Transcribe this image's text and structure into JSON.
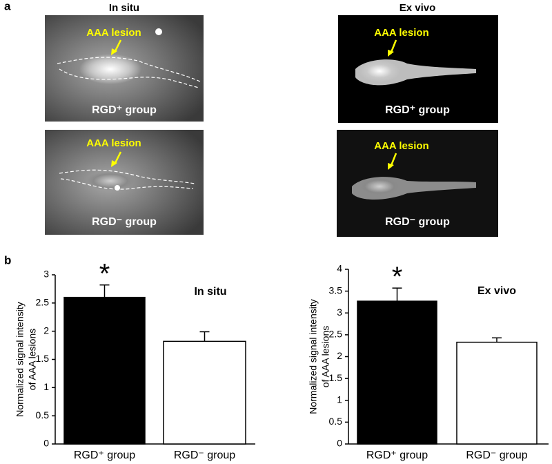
{
  "figure": {
    "panel_labels": [
      "a",
      "b"
    ],
    "images": [
      {
        "title": "In situ",
        "panels": [
          {
            "annotation": "AAA lesion",
            "group": "RGD⁺ group"
          },
          {
            "annotation": "AAA lesion",
            "group": "RGD⁻ group"
          }
        ]
      },
      {
        "title": "Ex vivo",
        "panels": [
          {
            "annotation": "AAA lesion",
            "group": "RGD⁺ group"
          },
          {
            "annotation": "AAA lesion",
            "group": "RGD⁻ group"
          }
        ]
      }
    ]
  },
  "chart_data": [
    {
      "type": "bar",
      "label": "In situ",
      "significance": "*",
      "ylabel": [
        "Normalized signal intensity",
        "of AAA lesions"
      ],
      "categories": [
        "RGD⁺ group",
        "RGD⁻ group"
      ],
      "values": [
        2.6,
        1.82
      ],
      "errors": [
        0.22,
        0.17
      ],
      "colors": [
        "#000000",
        "#ffffff"
      ],
      "ylim": [
        0,
        3
      ],
      "yticks": [
        0,
        0.5,
        1,
        1.5,
        2,
        2.5,
        3
      ]
    },
    {
      "type": "bar",
      "label": "Ex vivo",
      "significance": "*",
      "ylabel": [
        "Normalized signal intensity",
        "of AAA lesions"
      ],
      "categories": [
        "RGD⁺ group",
        "RGD⁻ group"
      ],
      "values": [
        3.27,
        2.33
      ],
      "errors": [
        0.3,
        0.1
      ],
      "colors": [
        "#000000",
        "#ffffff"
      ],
      "ylim": [
        0,
        4
      ],
      "yticks": [
        0,
        0.5,
        1,
        1.5,
        2,
        2.5,
        3,
        3.5,
        4
      ]
    }
  ]
}
